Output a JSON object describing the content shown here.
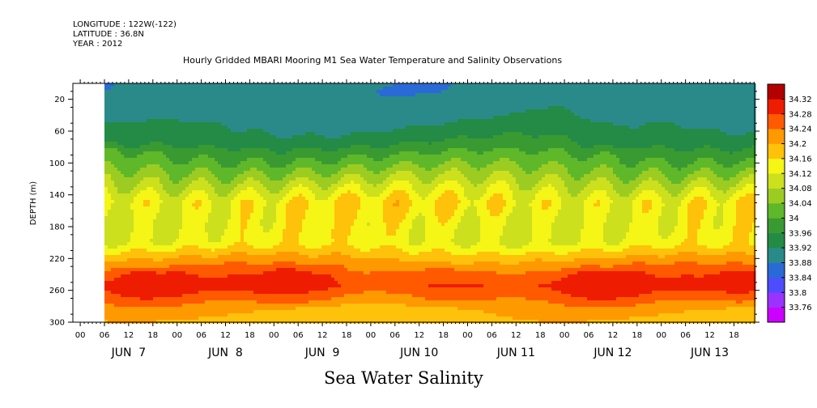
{
  "header": {
    "longitude": "LONGITUDE : 122W(-122)",
    "latitude": "LATITUDE : 36.8N",
    "year": "YEAR : 2012"
  },
  "chart_data": {
    "type": "heatmap",
    "title": "Hourly Gridded MBARI Mooring M1 Sea Water Temperature and Salinity Observations",
    "xlabel": "Sea Water Salinity",
    "ylabel": "DEPTH (m)",
    "ylim": [
      300,
      0
    ],
    "y_ticks": [
      20,
      60,
      100,
      140,
      180,
      220,
      260,
      300
    ],
    "x_hour_ticks": [
      "00",
      "06",
      "12",
      "18",
      "00",
      "06",
      "12",
      "18",
      "00",
      "06",
      "12",
      "18",
      "00",
      "06",
      "12",
      "18",
      "00",
      "06",
      "12",
      "18",
      "00",
      "06",
      "12",
      "18",
      "00",
      "06",
      "12",
      "18"
    ],
    "x_day_labels": [
      "JUN  7",
      "JUN  8",
      "JUN  9",
      "JUN 10",
      "JUN 11",
      "JUN 12",
      "JUN 13"
    ],
    "data_start": "JUN 7 06",
    "colorbar_levels": [
      33.76,
      33.8,
      33.84,
      33.88,
      33.92,
      33.96,
      34,
      34.04,
      34.08,
      34.12,
      34.16,
      34.2,
      34.24,
      34.28,
      34.32
    ],
    "colorbar_colors": [
      "#cc00ff",
      "#9a33ff",
      "#4d4dff",
      "#2a6ad6",
      "#2a8a8a",
      "#238b45",
      "#3a9a32",
      "#5fb82a",
      "#9ccc22",
      "#cce01e",
      "#f5f516",
      "#ffc20a",
      "#ff9900",
      "#ff5a00",
      "#ee1c00",
      "#b30000"
    ],
    "depth_profile": [
      {
        "depth": 10,
        "salinity": 33.9
      },
      {
        "depth": 40,
        "salinity": 33.91
      },
      {
        "depth": 70,
        "salinity": 33.95
      },
      {
        "depth": 100,
        "salinity": 34.02
      },
      {
        "depth": 130,
        "salinity": 34.1
      },
      {
        "depth": 150,
        "salinity": 34.15
      },
      {
        "depth": 175,
        "salinity": 34.13
      },
      {
        "depth": 200,
        "salinity": 34.13
      },
      {
        "depth": 220,
        "salinity": 34.2
      },
      {
        "depth": 240,
        "salinity": 34.27
      },
      {
        "depth": 255,
        "salinity": 34.29
      },
      {
        "depth": 270,
        "salinity": 34.25
      },
      {
        "depth": 285,
        "salinity": 34.2
      },
      {
        "depth": 300,
        "salinity": 34.18
      }
    ]
  }
}
